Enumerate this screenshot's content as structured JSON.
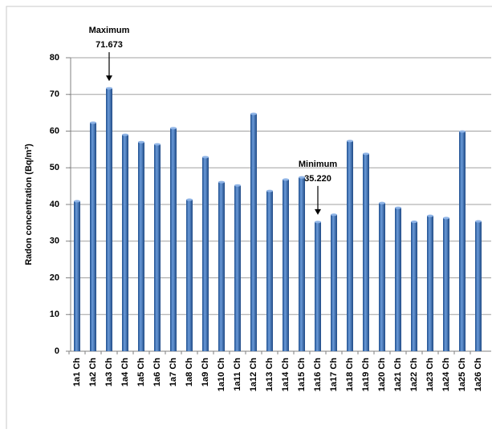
{
  "chart_data": {
    "type": "bar",
    "y_label": "Radon concentration (Bq/m³)",
    "categories": [
      "1a1 Ch",
      "1a2 Ch",
      "1a3 Ch",
      "1a4 Ch",
      "1a5 Ch",
      "1a6 Ch",
      "1a7 Ch",
      "1a8 Ch",
      "1a9 Ch",
      "1a10 Ch",
      "1a11 Ch",
      "1a12 Ch",
      "1a13 Ch",
      "1a14 Ch",
      "1a15 Ch",
      "1a16 Ch",
      "1a17 Ch",
      "1a18 Ch",
      "1a19 Ch",
      "1a20 Ch",
      "1a21 Ch",
      "1a22 Ch",
      "1a23 Ch",
      "1a24 Ch",
      "1a25 Ch",
      "1a26 Ch"
    ],
    "values": [
      40.9,
      62.3,
      71.673,
      59.0,
      57.0,
      56.4,
      60.8,
      41.3,
      52.9,
      46.1,
      45.2,
      64.7,
      43.7,
      46.8,
      47.4,
      35.22,
      37.2,
      57.3,
      53.8,
      40.4,
      39.1,
      35.3,
      36.9,
      36.3,
      59.9,
      35.4
    ],
    "color": "#3a6fb8",
    "ylim": [
      0,
      80
    ],
    "yticks": [
      0,
      10,
      20,
      30,
      40,
      50,
      60,
      70,
      80
    ],
    "grid": true,
    "annotations": [
      {
        "title": "Maximum",
        "value": "71.673",
        "category": 2
      },
      {
        "title": "Minimum",
        "value": "35.220",
        "category": 15
      }
    ]
  }
}
